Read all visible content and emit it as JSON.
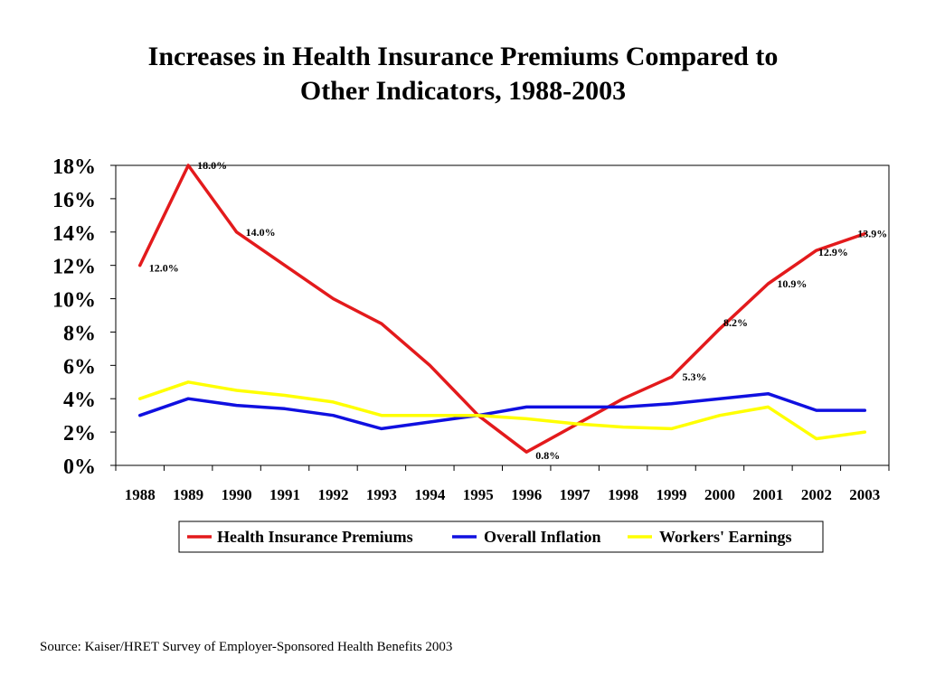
{
  "title": {
    "line1": "Increases in Health Insurance Premiums Compared to",
    "line2": "Other Indicators, 1988-2003"
  },
  "source": "Source:  Kaiser/HRET Survey of Employer-Sponsored Health Benefits 2003",
  "chart_data": {
    "type": "line",
    "x": [
      "1988",
      "1989",
      "1990",
      "1991",
      "1992",
      "1993",
      "1994",
      "1995",
      "1996",
      "1997",
      "1998",
      "1999",
      "2000",
      "2001",
      "2002",
      "2003"
    ],
    "ylim": [
      0,
      18
    ],
    "yticks": [
      0,
      2,
      4,
      6,
      8,
      10,
      12,
      14,
      16,
      18
    ],
    "ytick_labels": [
      "0%",
      "2%",
      "4%",
      "6%",
      "8%",
      "10%",
      "12%",
      "14%",
      "16%",
      "18%"
    ],
    "grid": false,
    "legend_position": "bottom",
    "series": [
      {
        "name": "Health Insurance Premiums",
        "color": "#e31a1c",
        "values": [
          12.0,
          18.0,
          14.0,
          12.0,
          10.0,
          8.5,
          6.0,
          3.0,
          0.8,
          null,
          4.0,
          5.3,
          8.2,
          10.9,
          12.9,
          13.9
        ],
        "data_labels": [
          {
            "index": 0,
            "text": "12.0%"
          },
          {
            "index": 1,
            "text": "18.0%"
          },
          {
            "index": 2,
            "text": "14.0%"
          },
          {
            "index": 8,
            "text": "0.8%"
          },
          {
            "index": 11,
            "text": "5.3%"
          },
          {
            "index": 12,
            "text": "8.2%"
          },
          {
            "index": 13,
            "text": "10.9%"
          },
          {
            "index": 14,
            "text": "12.9%"
          },
          {
            "index": 15,
            "text": "13.9%"
          }
        ]
      },
      {
        "name": "Overall Inflation",
        "color": "#1010e0",
        "values": [
          3.0,
          4.0,
          3.6,
          3.4,
          3.0,
          2.2,
          2.6,
          3.0,
          3.5,
          3.5,
          3.5,
          3.7,
          4.0,
          4.3,
          3.3,
          3.3
        ]
      },
      {
        "name": "Workers' Earnings",
        "color": "#ffff00",
        "values": [
          4.0,
          5.0,
          4.5,
          4.2,
          3.8,
          3.0,
          3.0,
          3.0,
          2.8,
          2.5,
          2.3,
          2.2,
          3.0,
          3.5,
          1.6,
          2.0
        ]
      }
    ]
  }
}
